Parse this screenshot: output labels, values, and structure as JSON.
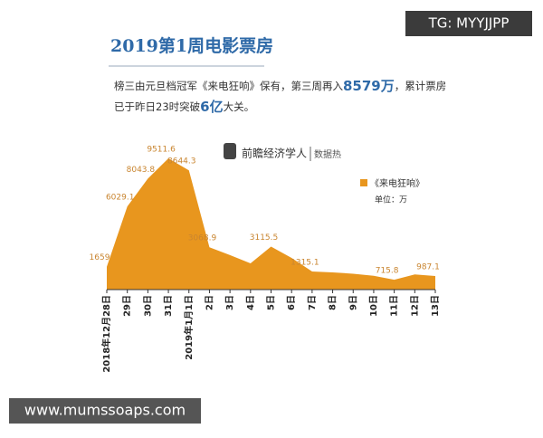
{
  "watermark": "TG: MYYJJPP",
  "footer": "www.mumssoaps.com",
  "header": {
    "title": "2019第1周电影票房",
    "paragraph": [
      [
        "榜三由元旦档冠军《来电狂响》保有，第三周再入",
        "8579万",
        "，累计票房"
      ],
      [
        "已于昨日23时突破",
        "6亿",
        "大关。"
      ]
    ]
  },
  "logo": {
    "name": "前瞻经济学人",
    "tag": "数据热"
  },
  "chart_data": {
    "type": "area",
    "categories": [
      "2018年12月28日",
      "29日",
      "30日",
      "31日",
      "2019年1月1日",
      "2日",
      "3日",
      "4日",
      "5日",
      "6日",
      "7日",
      "8日",
      "9日",
      "10日",
      "11日",
      "12日",
      "13日"
    ],
    "series": [
      {
        "name": "《来电狂响》",
        "color": "#e8961e",
        "values": [
          1659,
          6029.1,
          8043.8,
          9511.6,
          8644.3,
          3068.9,
          2500,
          1900,
          3115.5,
          2300,
          1315.1,
          1250,
          1150,
          1000,
          715.8,
          1100,
          987.1
        ],
        "value_labels": [
          "1659",
          "6029.1",
          "8043.8",
          "9511.6",
          "8644.3",
          "3068.9",
          null,
          null,
          "3115.5",
          null,
          "1315.1",
          null,
          null,
          null,
          "715.8",
          null,
          "987.1"
        ]
      }
    ],
    "unit": "单位：万",
    "legend": "upper right"
  }
}
